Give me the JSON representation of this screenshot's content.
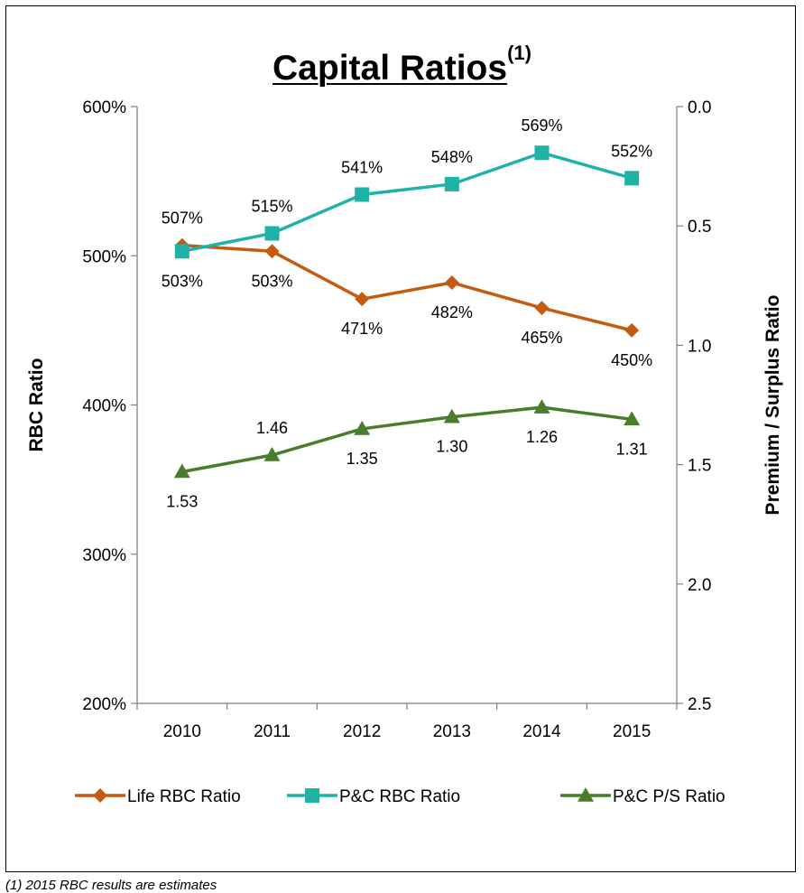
{
  "title": {
    "text": "Capital Ratios",
    "superscript": "(1)"
  },
  "footnote": "(1)   2015 RBC results are estimates",
  "chart_data": {
    "type": "line",
    "title": "Capital Ratios(1)",
    "categories": [
      "2010",
      "2011",
      "2012",
      "2013",
      "2014",
      "2015"
    ],
    "y_left": {
      "label": "RBC Ratio",
      "range": [
        200,
        600
      ],
      "ticks": [
        200,
        300,
        400,
        500,
        600
      ],
      "tick_labels": [
        "200%",
        "300%",
        "400%",
        "500%",
        "600%"
      ]
    },
    "y_right": {
      "label": "Premium / Surplus Ratio",
      "range": [
        0.0,
        2.5
      ],
      "inverted": true,
      "ticks": [
        0.0,
        0.5,
        1.0,
        1.5,
        2.0,
        2.5
      ],
      "tick_labels": [
        "0.0",
        "0.5",
        "1.0",
        "1.5",
        "2.0",
        "2.5"
      ]
    },
    "grid": false,
    "legend": "bottom",
    "series": [
      {
        "name": "Life RBC Ratio",
        "axis": "left",
        "color": "#c55a11",
        "marker": "diamond",
        "values": [
          507,
          503,
          471,
          482,
          465,
          450
        ],
        "labels": [
          "507%",
          "503%",
          "471%",
          "482%",
          "465%",
          "450%"
        ],
        "label_pos": [
          "above",
          "below",
          "below",
          "below",
          "below",
          "below"
        ]
      },
      {
        "name": "P&C RBC Ratio",
        "axis": "left",
        "color": "#1fb2a6",
        "marker": "square",
        "values": [
          503,
          515,
          541,
          548,
          569,
          552
        ],
        "labels": [
          "503%",
          "515%",
          "541%",
          "548%",
          "569%",
          "552%"
        ],
        "label_pos": [
          "below",
          "above",
          "above",
          "above",
          "above",
          "above"
        ]
      },
      {
        "name": "P&C P/S Ratio",
        "axis": "right",
        "color": "#4a7c2c",
        "marker": "triangle",
        "values": [
          1.53,
          1.46,
          1.35,
          1.3,
          1.26,
          1.31
        ],
        "labels": [
          "1.53",
          "1.46",
          "1.35",
          "1.30",
          "1.26",
          "1.31"
        ],
        "label_pos": [
          "below",
          "above",
          "below",
          "below",
          "below",
          "below"
        ]
      }
    ]
  }
}
